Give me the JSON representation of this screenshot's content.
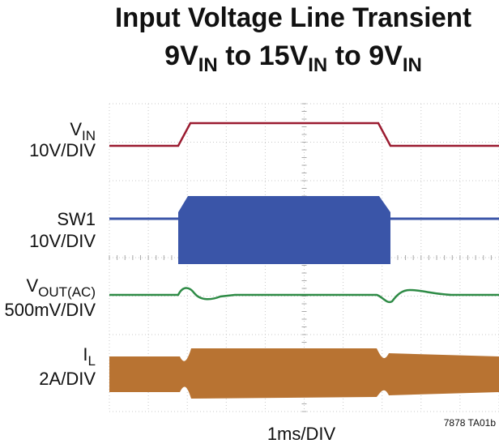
{
  "title_line1": "Input Voltage Line Transient",
  "title_line2": [
    "9V",
    "IN",
    " to 15V",
    "IN",
    " to 9V",
    "IN"
  ],
  "traces": [
    {
      "label": [
        "V",
        "IN"
      ],
      "scale": "10V/DIV"
    },
    {
      "label": [
        "SW1"
      ],
      "scale": "10V/DIV"
    },
    {
      "label": [
        "V",
        "OUT(AC)"
      ],
      "scale": "500mV/DIV"
    },
    {
      "label": [
        "I",
        "L"
      ],
      "scale": "2A/DIV"
    }
  ],
  "x_label": "1ms/DIV",
  "figure_id": "7878 TA01b"
}
